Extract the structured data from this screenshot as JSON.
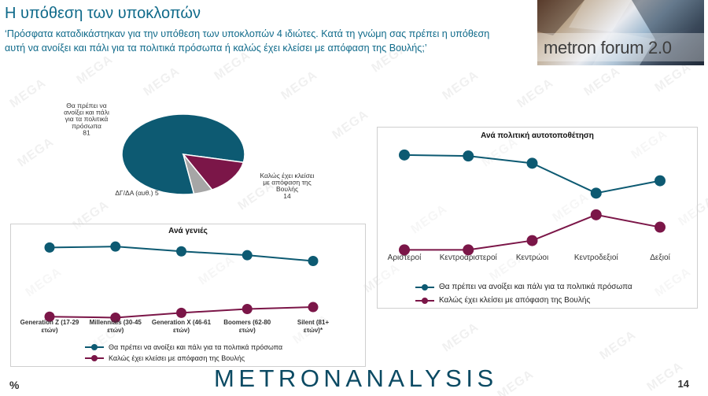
{
  "header": {
    "title": "Η υπόθεση των υποκλοπών",
    "question": "‘Πρόσφατα καταδικάστηκαν για την υπόθεση των υποκλοπών 4 ιδιώτες. Κατά τη γνώμη σας πρέπει η υπόθεση αυτή να ανοίξει και πάλι για τα πολιτικά πρόσωπα ή καλώς έχει κλείσει με απόφαση της Βουλής;’"
  },
  "logo": {
    "text": "metron forum 2.0"
  },
  "watermark": "MEGA",
  "colors": {
    "teal": "#0d5a72",
    "maroon": "#7b1648",
    "gray": "#a6a6a6",
    "title_blue": "#0f6a8a"
  },
  "chart_data": [
    {
      "type": "pie",
      "slices": [
        {
          "label": "Θα πρέπει να ανοίξει και πάλι για τα πολιτικά πρόσωπα",
          "value": 81,
          "color": "#0d5a72"
        },
        {
          "label": "Καλώς έχει κλείσει με απόφαση της Βουλής",
          "value": 14,
          "color": "#7b1648"
        },
        {
          "label": "ΔΓ/ΔΑ (αυθ.)",
          "value": 5,
          "color": "#a6a6a6"
        }
      ]
    },
    {
      "type": "line",
      "title": "Ανά γενιές",
      "categories": [
        "Generation Z (17-29 ετών)",
        "Millennials (30-45 ετών)",
        "Generation X (46-61 ετών)",
        "Boomers (62-80 ετών)",
        "Silent (81+ ετών)*"
      ],
      "series": [
        {
          "name": "Θα πρέπει να ανοίξει και πάλι για τα πολιτικά πρόσωπα",
          "color": "#0d5a72",
          "values": [
            80,
            81,
            76,
            72,
            66
          ]
        },
        {
          "name": "Καλώς έχει κλείσει με απόφαση της Βουλής",
          "color": "#7b1648",
          "values": [
            8,
            7,
            12,
            16,
            18
          ]
        }
      ],
      "ylim": [
        0,
        100
      ]
    },
    {
      "type": "line",
      "title": "Ανά πολιτική αυτοτοποθέτηση",
      "categories": [
        "Αριστεροί",
        "Κεντροαριστεροί",
        "Κεντρώοι",
        "Κεντροδεξιοί",
        "Δεξιοί"
      ],
      "series": [
        {
          "name": "Θα πρέπει να ανοίξει και πάλι για τα πολιτικά πρόσωπα",
          "color": "#0d5a72",
          "values": [
            94,
            93,
            86,
            57,
            69
          ]
        },
        {
          "name": "Καλώς έχει κλείσει με απόφαση της Βουλής",
          "color": "#7b1648",
          "values": [
            2,
            2,
            11,
            36,
            24
          ]
        }
      ],
      "ylim": [
        0,
        100
      ]
    }
  ],
  "footer": {
    "brand": "METRONANALYSIS",
    "page": "14",
    "unit": "%"
  }
}
